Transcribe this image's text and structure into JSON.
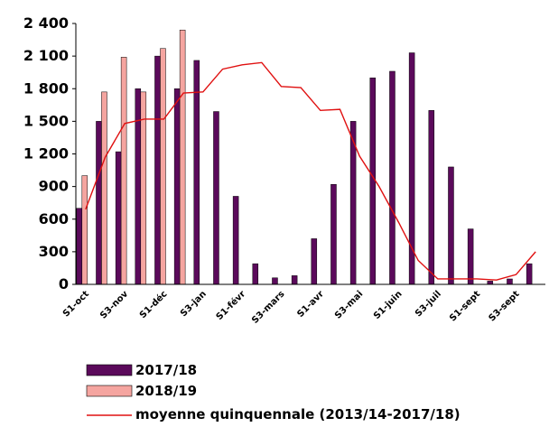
{
  "chart_data": {
    "type": "bar",
    "title": "",
    "xlabel": "",
    "ylabel": "",
    "ylim": [
      0,
      2400
    ],
    "yticks": [
      "0",
      "300",
      "600",
      "900",
      "1 200",
      "1 500",
      "1 800",
      "2 100",
      "2 400"
    ],
    "ytick_values": [
      0,
      300,
      600,
      900,
      1200,
      1500,
      1800,
      2100,
      2400
    ],
    "xtick_labels": [
      "S1-oct",
      "S3-nov",
      "S1-déc",
      "S3-jan",
      "S1-févr",
      "S3-mars",
      "S1-avr",
      "S3-mai",
      "S1-juin",
      "S3-juil",
      "S1-sept",
      "S3-sept"
    ],
    "grid": false,
    "legend_position": "bottom-left",
    "colors": {
      "s2017": "#5b0a5b",
      "s2018": "#f5a5a0",
      "avg": "#e01010"
    },
    "series": [
      {
        "name": "2017/18",
        "type": "bar",
        "values": [
          700,
          1500,
          1220,
          1800,
          2100,
          1800,
          2060,
          1590,
          810,
          190,
          60,
          80,
          420,
          920,
          1500,
          1900,
          1960,
          2130,
          1600,
          1080,
          510,
          30,
          50,
          190
        ]
      },
      {
        "name": "2018/19",
        "type": "bar",
        "values": [
          1000,
          1770,
          2090,
          1770,
          2170,
          2340,
          null,
          null,
          null,
          null,
          null,
          null,
          null,
          null,
          null,
          null,
          null,
          null,
          null,
          null,
          null,
          null,
          null,
          null
        ]
      },
      {
        "name": "moyenne quinquennale (2013/14-2017/18)",
        "type": "line",
        "values": [
          690,
          1170,
          1480,
          1520,
          1520,
          1760,
          1770,
          1980,
          2020,
          2040,
          1820,
          1810,
          1600,
          1610,
          1180,
          900,
          570,
          220,
          50,
          50,
          50,
          40,
          90,
          300
        ]
      }
    ]
  }
}
